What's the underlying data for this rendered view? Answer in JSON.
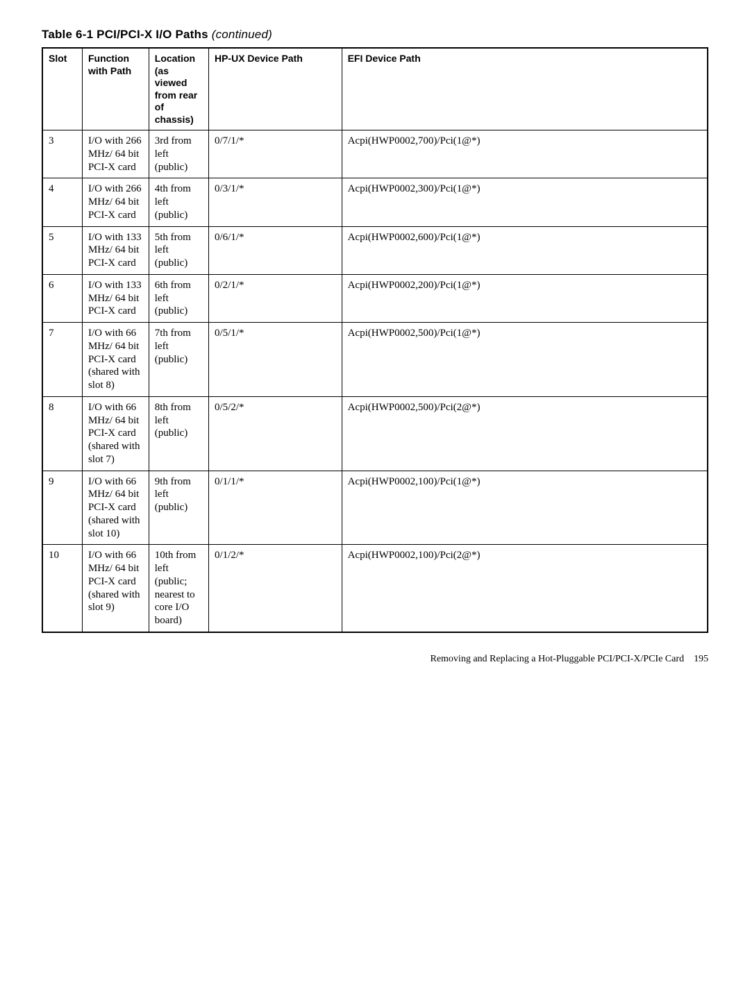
{
  "title": {
    "prefix": "Table 6-1  PCI/PCI-X I/O Paths",
    "suffix": "(continued)"
  },
  "columns": [
    "Slot",
    "Function with Path",
    "Location (as viewed from rear of chassis)",
    "HP-UX Device Path",
    "EFI Device Path"
  ],
  "rows": [
    {
      "slot": "3",
      "func": "I/O with 266 MHz/ 64 bit PCI-X card",
      "loc": "3rd from left (public)",
      "hpux": "0/7/1/*",
      "efi": "Acpi(HWP0002,700)/Pci(1@*)"
    },
    {
      "slot": "4",
      "func": "I/O with 266 MHz/ 64 bit PCI-X card",
      "loc": "4th from left (public)",
      "hpux": "0/3/1/*",
      "efi": "Acpi(HWP0002,300)/Pci(1@*)"
    },
    {
      "slot": "5",
      "func": "I/O with 133 MHz/ 64 bit PCI-X card",
      "loc": "5th from left (public)",
      "hpux": "0/6/1/*",
      "efi": "Acpi(HWP0002,600)/Pci(1@*)"
    },
    {
      "slot": "6",
      "func": "I/O with 133 MHz/ 64 bit PCI-X card",
      "loc": "6th from left (public)",
      "hpux": "0/2/1/*",
      "efi": "Acpi(HWP0002,200)/Pci(1@*)"
    },
    {
      "slot": "7",
      "func": "I/O with 66 MHz/ 64 bit PCI-X card (shared with slot 8)",
      "loc": "7th from left (public)",
      "hpux": "0/5/1/*",
      "efi": "Acpi(HWP0002,500)/Pci(1@*)"
    },
    {
      "slot": "8",
      "func": "I/O with 66 MHz/ 64 bit PCI-X card (shared with slot 7)",
      "loc": "8th from left (public)",
      "hpux": "0/5/2/*",
      "efi": "Acpi(HWP0002,500)/Pci(2@*)"
    },
    {
      "slot": "9",
      "func": "I/O with 66 MHz/ 64 bit PCI-X card (shared with slot 10)",
      "loc": "9th from left (public)",
      "hpux": "0/1/1/*",
      "efi": "Acpi(HWP0002,100)/Pci(1@*)"
    },
    {
      "slot": "10",
      "func": "I/O with 66 MHz/ 64 bit PCI-X card (shared with slot 9)",
      "loc": "10th from left (public; nearest to core I/O board)",
      "hpux": "0/1/2/*",
      "efi": "Acpi(HWP0002,100)/Pci(2@*)"
    }
  ],
  "footer": {
    "text": "Removing and Replacing a Hot-Pluggable PCI/PCI-X/PCIe Card",
    "page": "195"
  }
}
